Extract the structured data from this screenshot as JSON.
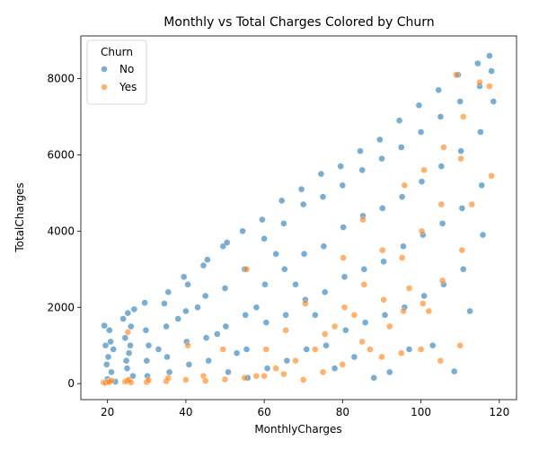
{
  "chart_data": {
    "type": "scatter",
    "title": "Monthly vs Total Charges Colored by Churn",
    "xlabel": "MonthlyCharges",
    "ylabel": "TotalCharges",
    "xlim": [
      13.2,
      124.4
    ],
    "ylim": [
      -420,
      9120
    ],
    "xticks": [
      20,
      40,
      60,
      80,
      100,
      120
    ],
    "yticks": [
      0,
      2000,
      4000,
      6000,
      8000
    ],
    "grid": false,
    "legend": {
      "title": "Churn",
      "placement": "top-left"
    },
    "series": [
      {
        "name": "No",
        "color": "#1f77b4",
        "points": [
          [
            19.2,
            1520
          ],
          [
            19.5,
            1000
          ],
          [
            20.0,
            120
          ],
          [
            20.2,
            700
          ],
          [
            20.5,
            1400
          ],
          [
            21.0,
            300
          ],
          [
            19.8,
            500
          ],
          [
            20.8,
            1100
          ],
          [
            21.5,
            900
          ],
          [
            22.0,
            50
          ],
          [
            24.0,
            1700
          ],
          [
            24.5,
            1200
          ],
          [
            25.0,
            400
          ],
          [
            25.2,
            1850
          ],
          [
            25.5,
            800
          ],
          [
            26.0,
            1500
          ],
          [
            26.5,
            200
          ],
          [
            24.8,
            600
          ],
          [
            25.8,
            1000
          ],
          [
            26.8,
            1950
          ],
          [
            29.5,
            2120
          ],
          [
            29.8,
            1400
          ],
          [
            30.0,
            600
          ],
          [
            30.5,
            1000
          ],
          [
            30.2,
            200
          ],
          [
            34.5,
            2100
          ],
          [
            35.0,
            1500
          ],
          [
            35.2,
            700
          ],
          [
            35.5,
            2400
          ],
          [
            35.8,
            300
          ],
          [
            39.5,
            2800
          ],
          [
            40.0,
            1900
          ],
          [
            40.2,
            1100
          ],
          [
            40.5,
            2600
          ],
          [
            40.8,
            500
          ],
          [
            44.5,
            3100
          ],
          [
            45.0,
            2300
          ],
          [
            45.2,
            1200
          ],
          [
            45.5,
            3250
          ],
          [
            45.8,
            600
          ],
          [
            49.5,
            3600
          ],
          [
            50.0,
            2500
          ],
          [
            50.2,
            1500
          ],
          [
            50.5,
            3700
          ],
          [
            50.8,
            300
          ],
          [
            54.5,
            4000
          ],
          [
            55.0,
            3000
          ],
          [
            55.2,
            1800
          ],
          [
            55.5,
            900
          ],
          [
            55.8,
            150
          ],
          [
            59.5,
            4300
          ],
          [
            60.0,
            3800
          ],
          [
            60.2,
            2600
          ],
          [
            60.5,
            1600
          ],
          [
            60.8,
            400
          ],
          [
            64.5,
            4800
          ],
          [
            65.0,
            4200
          ],
          [
            65.2,
            3000
          ],
          [
            65.5,
            1800
          ],
          [
            65.8,
            600
          ],
          [
            69.5,
            5100
          ],
          [
            70.0,
            4700
          ],
          [
            70.2,
            3400
          ],
          [
            70.5,
            2200
          ],
          [
            70.8,
            900
          ],
          [
            74.5,
            5500
          ],
          [
            75.0,
            4900
          ],
          [
            75.2,
            3600
          ],
          [
            75.5,
            2400
          ],
          [
            75.8,
            1000
          ],
          [
            79.5,
            5700
          ],
          [
            80.0,
            5200
          ],
          [
            80.2,
            4100
          ],
          [
            80.5,
            2800
          ],
          [
            80.8,
            1400
          ],
          [
            84.5,
            6100
          ],
          [
            85.0,
            5600
          ],
          [
            85.2,
            4400
          ],
          [
            85.5,
            3000
          ],
          [
            85.8,
            1600
          ],
          [
            89.5,
            6400
          ],
          [
            90.0,
            5900
          ],
          [
            90.2,
            4600
          ],
          [
            90.5,
            3200
          ],
          [
            90.8,
            1800
          ],
          [
            94.5,
            6900
          ],
          [
            95.0,
            6200
          ],
          [
            95.2,
            4900
          ],
          [
            95.5,
            3600
          ],
          [
            95.8,
            2000
          ],
          [
            99.5,
            7300
          ],
          [
            100.0,
            6600
          ],
          [
            100.2,
            5300
          ],
          [
            100.5,
            3900
          ],
          [
            100.8,
            2300
          ],
          [
            104.5,
            7700
          ],
          [
            105.0,
            7000
          ],
          [
            105.2,
            5700
          ],
          [
            105.5,
            4200
          ],
          [
            105.8,
            2600
          ],
          [
            109.5,
            8100
          ],
          [
            110.0,
            7400
          ],
          [
            110.2,
            6100
          ],
          [
            110.5,
            4600
          ],
          [
            110.8,
            3000
          ],
          [
            114.5,
            8400
          ],
          [
            115.0,
            7800
          ],
          [
            115.2,
            6600
          ],
          [
            115.5,
            5200
          ],
          [
            115.8,
            3900
          ],
          [
            117.5,
            8600
          ],
          [
            118.0,
            8200
          ],
          [
            118.5,
            7400
          ],
          [
            108.5,
            320
          ],
          [
            112.5,
            1900
          ],
          [
            103.0,
            1000
          ],
          [
            97.0,
            900
          ],
          [
            92.0,
            300
          ],
          [
            88.0,
            150
          ],
          [
            83.0,
            700
          ],
          [
            78.0,
            400
          ],
          [
            73.0,
            1800
          ],
          [
            68.0,
            2600
          ],
          [
            63.0,
            3400
          ],
          [
            58.0,
            2000
          ],
          [
            53.0,
            800
          ],
          [
            48.0,
            1300
          ],
          [
            43.0,
            2000
          ],
          [
            38.0,
            1700
          ],
          [
            33.0,
            900
          ]
        ]
      },
      {
        "name": "Yes",
        "color": "#ff7f0e",
        "points": [
          [
            19.0,
            30
          ],
          [
            19.5,
            20
          ],
          [
            20.2,
            60
          ],
          [
            20.5,
            40
          ],
          [
            21.0,
            80
          ],
          [
            24.5,
            50
          ],
          [
            25.0,
            70
          ],
          [
            25.5,
            100
          ],
          [
            26.0,
            30
          ],
          [
            25.2,
            1350
          ],
          [
            30.0,
            40
          ],
          [
            30.5,
            90
          ],
          [
            35.0,
            60
          ],
          [
            35.5,
            150
          ],
          [
            40.0,
            100
          ],
          [
            40.5,
            1000
          ],
          [
            44.5,
            200
          ],
          [
            45.0,
            70
          ],
          [
            50.0,
            110
          ],
          [
            49.5,
            900
          ],
          [
            55.0,
            150
          ],
          [
            55.5,
            3000
          ],
          [
            60.0,
            200
          ],
          [
            60.5,
            900
          ],
          [
            65.0,
            250
          ],
          [
            65.5,
            1400
          ],
          [
            70.0,
            100
          ],
          [
            70.5,
            2100
          ],
          [
            75.0,
            300
          ],
          [
            75.5,
            1300
          ],
          [
            80.0,
            500
          ],
          [
            80.5,
            2000
          ],
          [
            80.2,
            3300
          ],
          [
            85.0,
            1100
          ],
          [
            85.5,
            2600
          ],
          [
            85.2,
            4300
          ],
          [
            90.0,
            700
          ],
          [
            90.5,
            2200
          ],
          [
            90.2,
            3500
          ],
          [
            95.0,
            800
          ],
          [
            95.5,
            1900
          ],
          [
            95.2,
            3300
          ],
          [
            95.8,
            5200
          ],
          [
            100.0,
            900
          ],
          [
            100.5,
            2100
          ],
          [
            100.2,
            4000
          ],
          [
            100.8,
            5600
          ],
          [
            105.0,
            600
          ],
          [
            105.5,
            2700
          ],
          [
            105.2,
            4700
          ],
          [
            105.8,
            6200
          ],
          [
            110.0,
            1000
          ],
          [
            110.5,
            3500
          ],
          [
            110.2,
            5900
          ],
          [
            110.8,
            7000
          ],
          [
            113.0,
            4700
          ],
          [
            115.0,
            7900
          ],
          [
            118.0,
            5450
          ],
          [
            117.5,
            7800
          ],
          [
            109.0,
            8100
          ],
          [
            102.0,
            1900
          ],
          [
            97.0,
            2500
          ],
          [
            92.0,
            1500
          ],
          [
            87.0,
            900
          ],
          [
            83.0,
            1800
          ],
          [
            78.0,
            1500
          ],
          [
            73.0,
            900
          ],
          [
            68.0,
            600
          ],
          [
            63.0,
            400
          ],
          [
            58.0,
            200
          ]
        ]
      }
    ]
  }
}
